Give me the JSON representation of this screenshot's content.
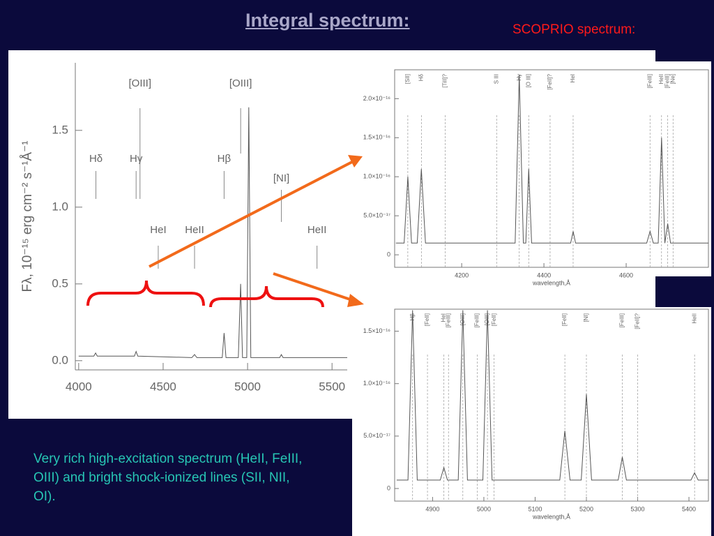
{
  "title": "Integral spectrum:",
  "subtitle": "SCOPRIO  spectrum:",
  "body": "Very rich high-excitation spectrum (HeII, FeIII, OIII) and bright shock-ionized lines (SII, NII, OI).",
  "chart_data": [
    {
      "type": "line",
      "ylabel": "Fλ, 10⁻¹⁵ erg cm⁻² s⁻¹Å⁻¹",
      "color": "#555555",
      "xlim": [
        3980,
        5590
      ],
      "ylim": [
        -0.06,
        1.94
      ],
      "xticks": [
        4000,
        4500,
        5000,
        5500
      ],
      "yticks": [
        {
          "value": 0,
          "label": "0.0"
        },
        {
          "value": 0.5,
          "label": "0.5"
        },
        {
          "value": 1,
          "label": "1.0"
        },
        {
          "value": 1.5,
          "label": "1.5"
        }
      ],
      "x": [
        4000,
        4090,
        4100,
        4110,
        4330,
        4340,
        4350,
        4670,
        4686,
        4700,
        4850,
        4861,
        4872,
        4945,
        4959,
        4970,
        4995,
        5007,
        5019,
        5190,
        5200,
        5210,
        5590
      ],
      "values": [
        0.03,
        0.03,
        0.05,
        0.03,
        0.03,
        0.06,
        0.03,
        0.02,
        0.04,
        0.02,
        0.02,
        0.18,
        0.02,
        0.02,
        0.5,
        0.02,
        0.02,
        1.65,
        0.02,
        0.02,
        0.04,
        0.02,
        0.02
      ],
      "annotations": [
        {
          "label": "[OIII]",
          "x": 4363
        },
        {
          "label": "[OIII]",
          "x": 4959
        },
        {
          "label": "Hδ",
          "x": 4102
        },
        {
          "label": "Hγ",
          "x": 4340
        },
        {
          "label": "Hβ",
          "x": 4861
        },
        {
          "label": "[NI]",
          "x": 5200
        },
        {
          "label": "HeI",
          "x": 4471
        },
        {
          "label": "HeII",
          "x": 4686
        },
        {
          "label": "HeII",
          "x": 5411
        }
      ]
    },
    {
      "type": "line",
      "xlabel": "wavelength,Å",
      "color": "#555555",
      "xlim": [
        4037,
        4800
      ],
      "ylim": [
        -1.6e-17,
        2.37e-16
      ],
      "xticks": [
        4200,
        4400,
        4600
      ],
      "yticks": [
        0,
        {
          "value": 5e-17,
          "label": "5.0×10⁻¹⁷"
        },
        {
          "value": 1e-16,
          "label": "1.0×10⁻¹⁶"
        },
        {
          "value": 1.5e-16,
          "label": "1.5×10⁻¹⁶"
        },
        {
          "value": 2e-16,
          "label": "2.0×10⁻¹⁶"
        }
      ],
      "x": [
        4040,
        4060,
        4069,
        4078,
        4092,
        4102,
        4112,
        4330,
        4340,
        4350,
        4356,
        4363,
        4370,
        4465,
        4471,
        4477,
        4650,
        4658,
        4666,
        4678,
        4686,
        4694,
        4701,
        4708,
        4800
      ],
      "values": [
        1.5e-17,
        1.5e-17,
        1e-16,
        1.5e-17,
        1.5e-17,
        1.1e-16,
        1.5e-17,
        1.5e-17,
        2.3e-16,
        1.5e-17,
        1.5e-17,
        1.1e-16,
        1.5e-17,
        1.5e-17,
        3e-17,
        1.5e-17,
        1.5e-17,
        3e-17,
        1.5e-17,
        1.5e-17,
        1.5e-16,
        1.5e-17,
        4e-17,
        1.5e-17,
        1.5e-17
      ],
      "annotations": [
        {
          "label": "[SII]",
          "x": 4069
        },
        {
          "label": "Hδ",
          "x": 4102
        },
        {
          "label": "[TiII]?",
          "x": 4160
        },
        {
          "label": "S III",
          "x": 4285
        },
        {
          "label": "Hγ",
          "x": 4340
        },
        {
          "label": "[O III]",
          "x": 4363
        },
        {
          "label": "[FeII]?",
          "x": 4415
        },
        {
          "label": "HeI",
          "x": 4471
        },
        {
          "label": "[FeIII]",
          "x": 4658
        },
        {
          "label": "HeII",
          "x": 4686
        },
        {
          "label": "[FeIII]",
          "x": 4701
        },
        {
          "label": "[Ne]",
          "x": 4714
        }
      ]
    },
    {
      "type": "line",
      "xlabel": "wavelength,Å",
      "color": "#555555",
      "xlim": [
        4826,
        5438
      ],
      "ylim": [
        -1.2e-17,
        1.71e-16
      ],
      "xticks": [
        4900,
        5000,
        5100,
        5200,
        5300,
        5400
      ],
      "yticks": [
        0,
        {
          "value": 5e-17,
          "label": "5.0×10⁻¹⁷"
        },
        {
          "value": 1e-16,
          "label": "1.0×10⁻¹⁶"
        },
        {
          "value": 1.5e-16,
          "label": "1.5×10⁻¹⁶"
        }
      ],
      "x": [
        4830,
        4852,
        4861,
        4870,
        4915,
        4922,
        4929,
        4950,
        4959,
        4968,
        4998,
        5007,
        5016,
        5148,
        5158,
        5168,
        5190,
        5200,
        5210,
        5262,
        5270,
        5278,
        5404,
        5411,
        5418,
        5438
      ],
      "values": [
        8e-18,
        8e-18,
        1.7e-16,
        8e-18,
        8e-18,
        2e-17,
        8e-18,
        8e-18,
        1.7e-16,
        8e-18,
        8e-18,
        1.7e-16,
        8e-18,
        8e-18,
        5.5e-17,
        8e-18,
        8e-18,
        9e-17,
        8e-18,
        8e-18,
        3e-17,
        8e-18,
        8e-18,
        1.5e-17,
        8e-18,
        8e-18
      ],
      "annotations": [
        {
          "label": "Hβ",
          "x": 4861
        },
        {
          "label": "[FeII]",
          "x": 4890
        },
        {
          "label": "HeI",
          "x": 4922
        },
        {
          "label": "[FeIII]",
          "x": 4931
        },
        {
          "label": "[OIII]",
          "x": 4959
        },
        {
          "label": "[FeIII]",
          "x": 4987
        },
        {
          "label": "[OIII]",
          "x": 5007
        },
        {
          "label": "[FeII]",
          "x": 5020
        },
        {
          "label": "[FeII]",
          "x": 5158
        },
        {
          "label": "[NI]",
          "x": 5200
        },
        {
          "label": "[FeIII]",
          "x": 5270
        },
        {
          "label": "[FeII]?",
          "x": 5300
        },
        {
          "label": "HeII",
          "x": 5411
        }
      ]
    }
  ]
}
